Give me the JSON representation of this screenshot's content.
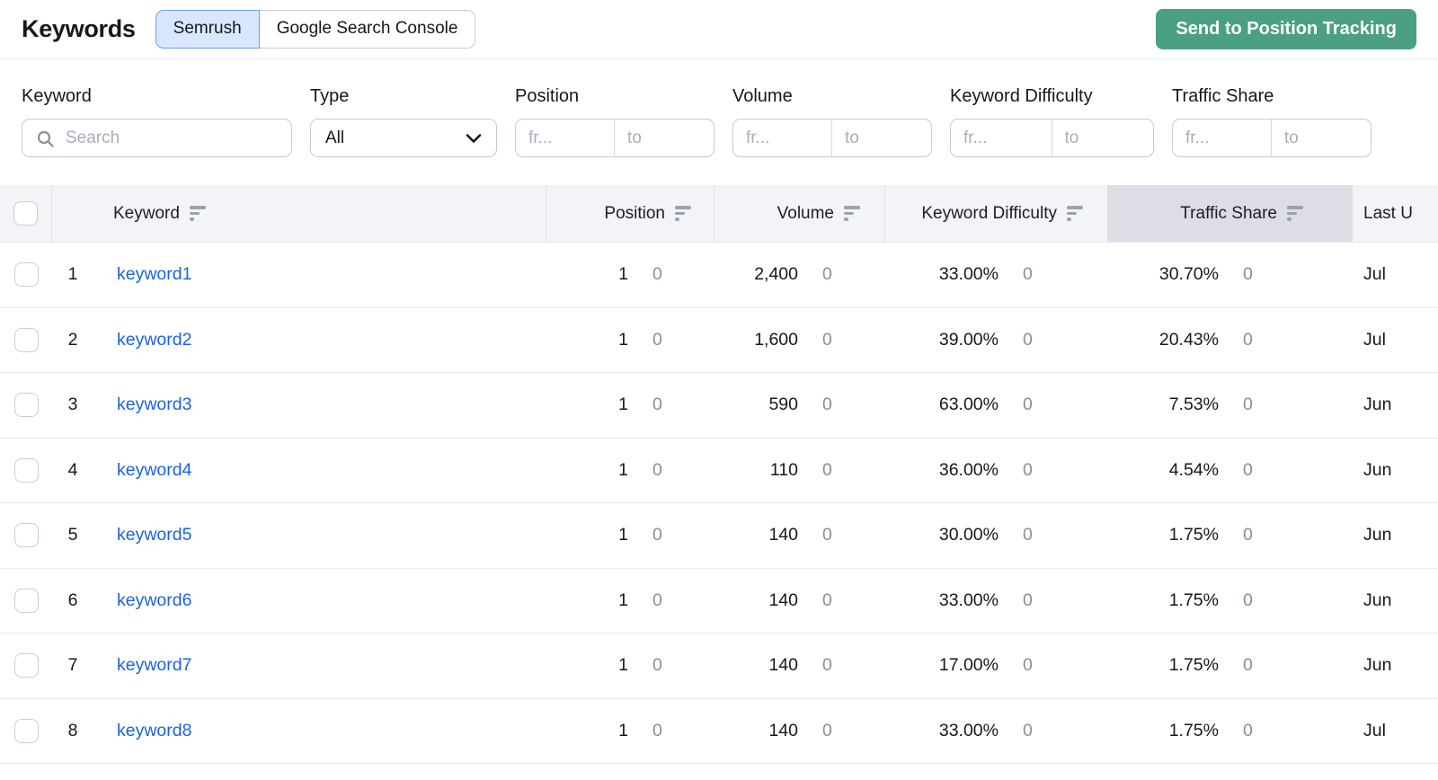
{
  "header": {
    "title": "Keywords",
    "tabs": [
      {
        "label": "Semrush",
        "active": true
      },
      {
        "label": "Google Search Console",
        "active": false
      }
    ],
    "action_button": "Send to Position Tracking"
  },
  "filters": {
    "keyword": {
      "label": "Keyword",
      "placeholder": "Search"
    },
    "type": {
      "label": "Type",
      "value": "All"
    },
    "position": {
      "label": "Position",
      "from_placeholder": "fr...",
      "to_placeholder": "to"
    },
    "volume": {
      "label": "Volume",
      "from_placeholder": "fr...",
      "to_placeholder": "to"
    },
    "keyword_difficulty": {
      "label": "Keyword Difficulty",
      "from_placeholder": "fr...",
      "to_placeholder": "to"
    },
    "traffic_share": {
      "label": "Traffic Share",
      "from_placeholder": "fr...",
      "to_placeholder": "to"
    }
  },
  "table": {
    "columns": [
      {
        "label": "Keyword",
        "sortable": true
      },
      {
        "label": "Position",
        "sortable": true
      },
      {
        "label": "Volume",
        "sortable": true
      },
      {
        "label": "Keyword Difficulty",
        "sortable": true
      },
      {
        "label": "Traffic Share",
        "sortable": true,
        "highlighted": true
      },
      {
        "label": "Last U",
        "truncated": true
      }
    ],
    "rows": [
      {
        "index": "1",
        "keyword": "keyword1",
        "position": "1",
        "position_diff": "0",
        "volume": "2,400",
        "volume_diff": "0",
        "difficulty": "33.00%",
        "difficulty_diff": "0",
        "traffic_share": "30.70%",
        "traffic_share_diff": "0",
        "last_update": "Jul"
      },
      {
        "index": "2",
        "keyword": "keyword2",
        "position": "1",
        "position_diff": "0",
        "volume": "1,600",
        "volume_diff": "0",
        "difficulty": "39.00%",
        "difficulty_diff": "0",
        "traffic_share": "20.43%",
        "traffic_share_diff": "0",
        "last_update": "Jul"
      },
      {
        "index": "3",
        "keyword": "keyword3",
        "position": "1",
        "position_diff": "0",
        "volume": "590",
        "volume_diff": "0",
        "difficulty": "63.00%",
        "difficulty_diff": "0",
        "traffic_share": "7.53%",
        "traffic_share_diff": "0",
        "last_update": "Jun"
      },
      {
        "index": "4",
        "keyword": "keyword4",
        "position": "1",
        "position_diff": "0",
        "volume": "110",
        "volume_diff": "0",
        "difficulty": "36.00%",
        "difficulty_diff": "0",
        "traffic_share": "4.54%",
        "traffic_share_diff": "0",
        "last_update": "Jun"
      },
      {
        "index": "5",
        "keyword": "keyword5",
        "position": "1",
        "position_diff": "0",
        "volume": "140",
        "volume_diff": "0",
        "difficulty": "30.00%",
        "difficulty_diff": "0",
        "traffic_share": "1.75%",
        "traffic_share_diff": "0",
        "last_update": "Jun"
      },
      {
        "index": "6",
        "keyword": "keyword6",
        "position": "1",
        "position_diff": "0",
        "volume": "140",
        "volume_diff": "0",
        "difficulty": "33.00%",
        "difficulty_diff": "0",
        "traffic_share": "1.75%",
        "traffic_share_diff": "0",
        "last_update": "Jun"
      },
      {
        "index": "7",
        "keyword": "keyword7",
        "position": "1",
        "position_diff": "0",
        "volume": "140",
        "volume_diff": "0",
        "difficulty": "17.00%",
        "difficulty_diff": "0",
        "traffic_share": "1.75%",
        "traffic_share_diff": "0",
        "last_update": "Jun"
      },
      {
        "index": "8",
        "keyword": "keyword8",
        "position": "1",
        "position_diff": "0",
        "volume": "140",
        "volume_diff": "0",
        "difficulty": "33.00%",
        "difficulty_diff": "0",
        "traffic_share": "1.75%",
        "traffic_share_diff": "0",
        "last_update": "Jul"
      }
    ]
  },
  "colors": {
    "link_blue": "#1b64da",
    "active_tab_bg": "#d8e7fd",
    "active_tab_border": "#69a1f1",
    "button_green": "#4aa081",
    "table_header_bg": "#f3f4f7",
    "sorted_column_header_bg": "#dcdde5",
    "diff_gray": "#878d9b"
  }
}
